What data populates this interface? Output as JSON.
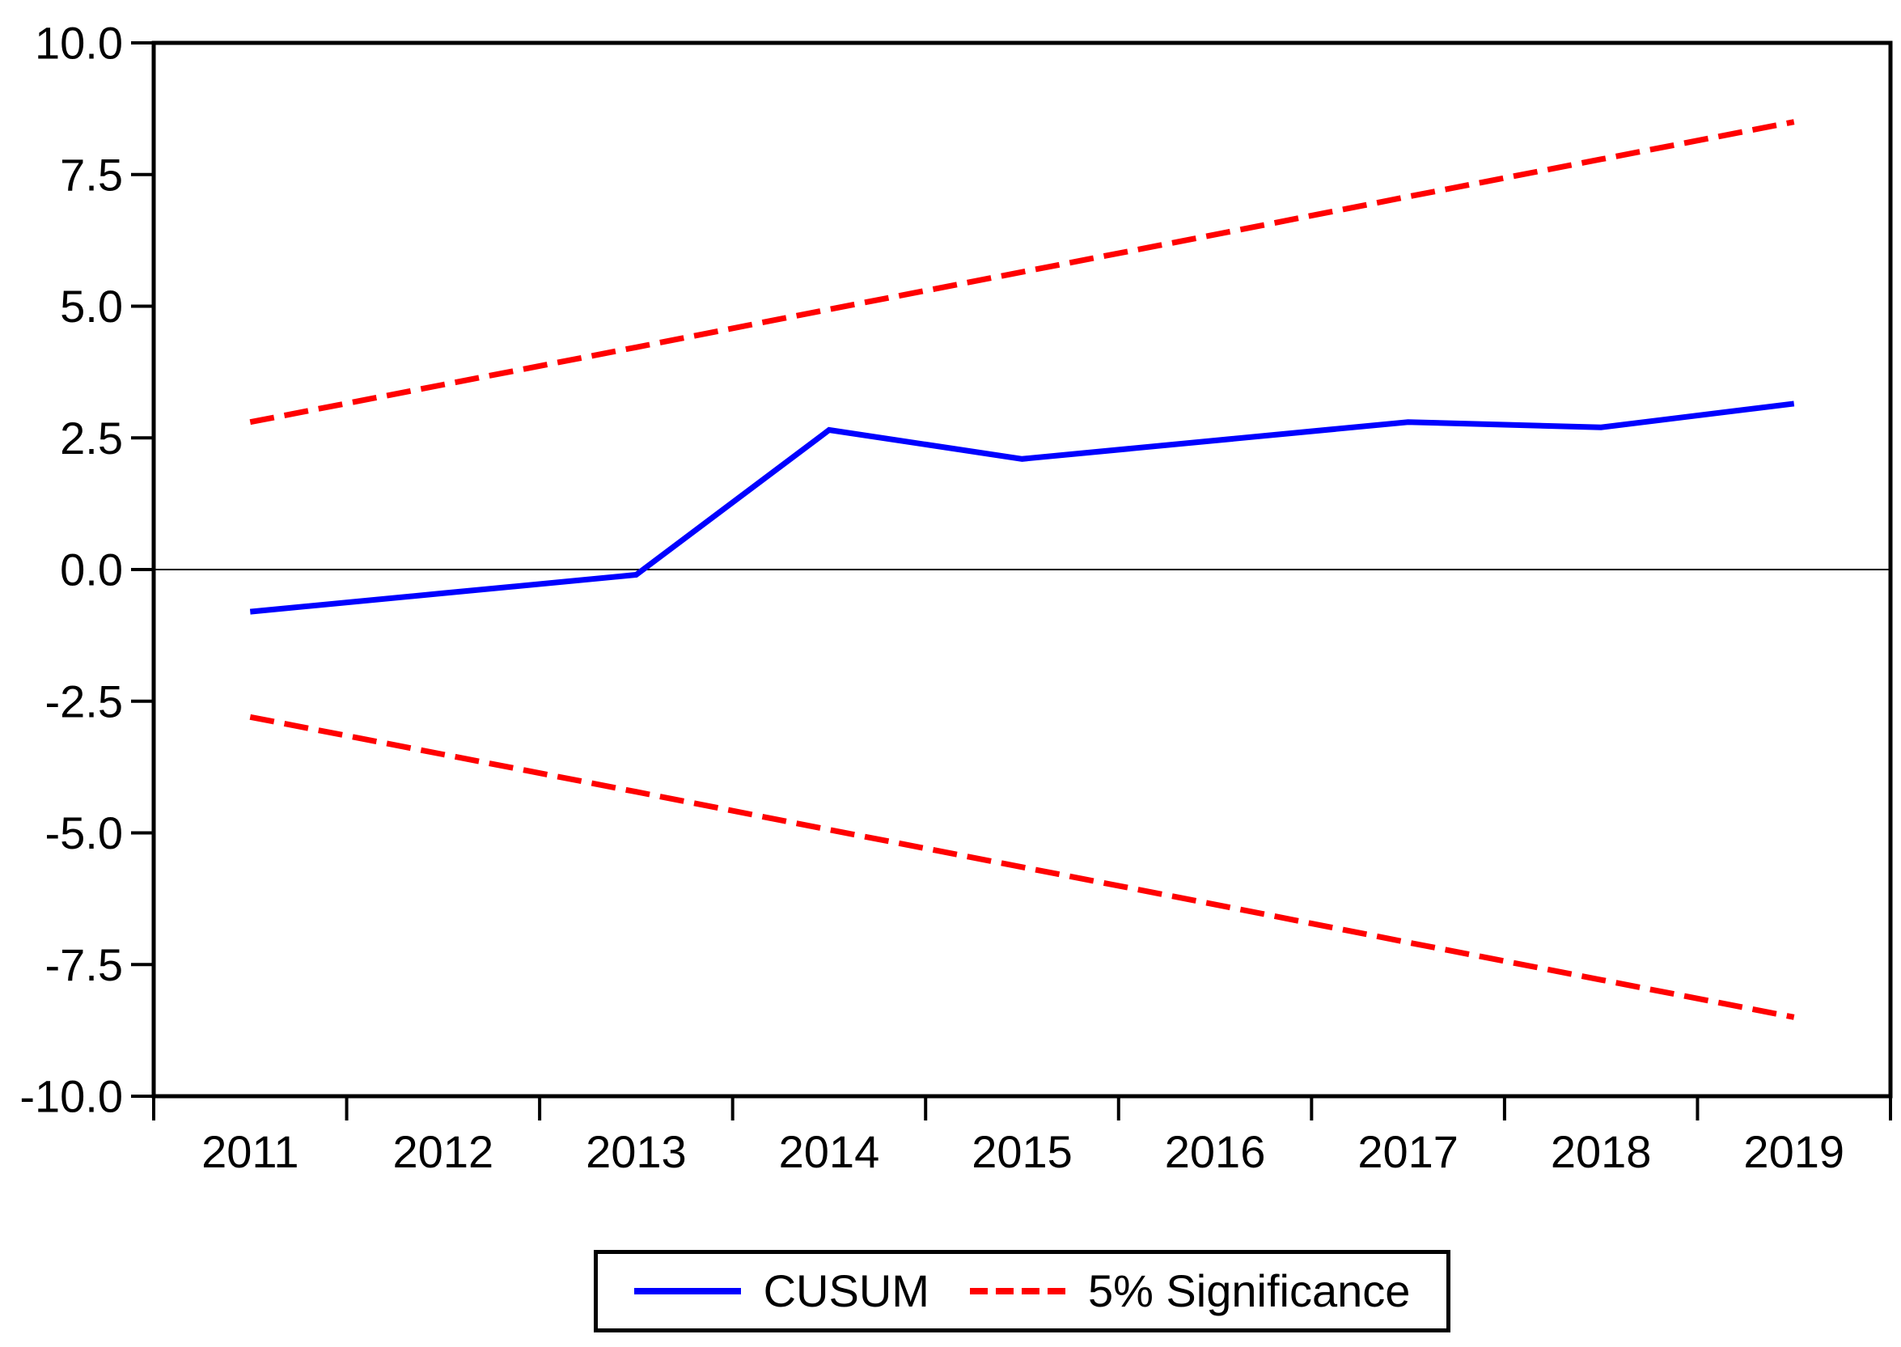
{
  "chart_data": {
    "type": "line",
    "title": "",
    "xlabel": "",
    "ylabel": "",
    "x": [
      2011,
      2012,
      2013,
      2014,
      2015,
      2016,
      2017,
      2018,
      2019
    ],
    "xtick_labels": [
      "2011",
      "2012",
      "2013",
      "2014",
      "2015",
      "2016",
      "2017",
      "2018",
      "2019"
    ],
    "ylim": [
      -10,
      10
    ],
    "ytick_step": 2.5,
    "ytick_labels": [
      "10.0",
      "7.5",
      "5.0",
      "2.5",
      "0.0",
      "-2.5",
      "-5.0",
      "-7.5",
      "-10.0"
    ],
    "ytick_values": [
      10,
      7.5,
      5,
      2.5,
      0,
      -2.5,
      -5,
      -7.5,
      -10
    ],
    "grid": false,
    "zero_line": true,
    "series": [
      {
        "name": "CUSUM",
        "style": "solid",
        "color": "#0000ff",
        "values": [
          -0.8,
          -0.45,
          -0.1,
          2.65,
          2.1,
          2.45,
          2.8,
          2.7,
          3.15
        ]
      },
      {
        "name": "5% Significance (upper bound)",
        "style": "dashed",
        "color": "#ff0000",
        "values": [
          2.8,
          3.51,
          4.22,
          4.94,
          5.65,
          6.36,
          7.08,
          7.79,
          8.5
        ]
      },
      {
        "name": "5% Significance (lower bound)",
        "style": "dashed",
        "color": "#ff0000",
        "values": [
          -2.8,
          -3.51,
          -4.22,
          -4.94,
          -5.65,
          -6.36,
          -7.08,
          -7.79,
          -8.5
        ]
      }
    ],
    "legend": [
      {
        "label": "CUSUM",
        "style": "solid",
        "color": "#0000ff"
      },
      {
        "label": "5% Significance",
        "style": "dashed",
        "color": "#ff0000"
      }
    ],
    "legend_position": "bottom-center"
  },
  "colors": {
    "axis": "#000000",
    "background": "#ffffff",
    "cusum": "#0000ff",
    "significance": "#ff0000"
  }
}
